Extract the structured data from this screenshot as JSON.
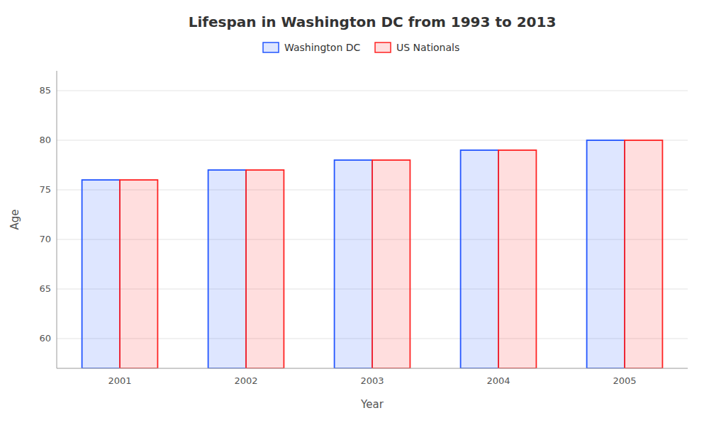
{
  "chart_data": {
    "type": "bar",
    "title": "Lifespan in Washington DC from 1993 to 2013",
    "xlabel": "Year",
    "ylabel": "Age",
    "categories": [
      "2001",
      "2002",
      "2003",
      "2004",
      "2005"
    ],
    "series": [
      {
        "name": "Washington DC",
        "color": "#2255ff",
        "values": [
          76,
          77,
          78,
          79,
          80
        ]
      },
      {
        "name": "US Nationals",
        "color": "#ff2222",
        "values": [
          76,
          77,
          78,
          79,
          80
        ]
      }
    ],
    "ylim": [
      57,
      87
    ],
    "yticks": [
      60,
      65,
      70,
      75,
      80,
      85
    ],
    "grid": true,
    "legend": "top"
  }
}
